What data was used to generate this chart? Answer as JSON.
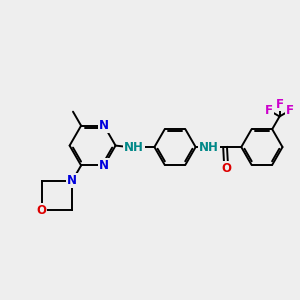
{
  "background_color": "#eeeeee",
  "bond_color": "#000000",
  "N_color": "#0000dd",
  "O_color": "#dd0000",
  "F_color": "#cc00cc",
  "NH_color": "#008888",
  "lw": 1.4,
  "fig_size": [
    3.0,
    3.0
  ],
  "dpi": 100,
  "xlim": [
    0,
    10
  ],
  "ylim": [
    0,
    10
  ],
  "font_size_atom": 8.5,
  "font_size_small": 7.5
}
